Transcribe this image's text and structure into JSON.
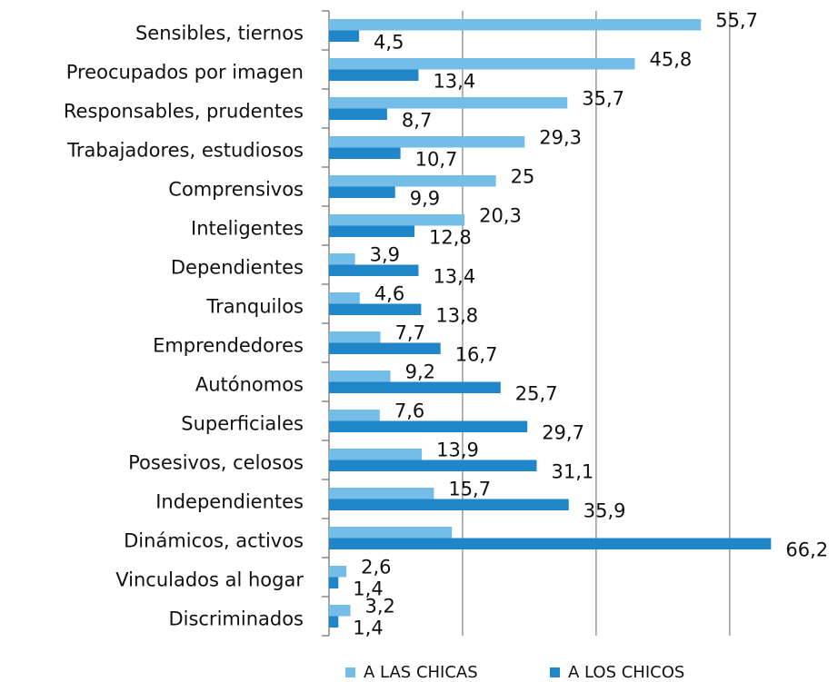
{
  "chart_data": {
    "type": "hbar",
    "categories": [
      "Sensibles, tiernos",
      "Preocupados por imagen",
      "Responsables, prudentes",
      "Trabajadores, estudiosos",
      "Comprensivos",
      "Inteligentes",
      "Dependientes",
      "Tranquilos",
      "Emprendedores",
      "Autónomos",
      "Superficiales",
      "Posesivos, celosos",
      "Independientes",
      "Dinámicos, activos",
      "Vinculados al hogar",
      "Discriminados"
    ],
    "series": [
      {
        "name": "A LAS CHICAS",
        "color": "#74bde9",
        "values": [
          55.7,
          45.8,
          35.7,
          29.3,
          25,
          20.3,
          3.9,
          4.6,
          7.7,
          9.2,
          7.6,
          13.9,
          15.7,
          18.4,
          2.6,
          3.2
        ],
        "value_labels": [
          "55,7",
          "45,8",
          "35,7",
          "29,3",
          "25",
          "20,3",
          "3,9",
          "4,6",
          "7,7",
          "9,2",
          "7,6",
          "13,9",
          "15,7",
          null,
          "2,6",
          "3,2"
        ]
      },
      {
        "name": "A LOS CHICOS",
        "color": "#1f86c9",
        "values": [
          4.5,
          13.4,
          8.7,
          10.7,
          9.9,
          12.8,
          13.4,
          13.8,
          16.7,
          25.7,
          29.7,
          31.1,
          35.9,
          66.2,
          1.4,
          1.4
        ],
        "value_labels": [
          "4,5",
          "13,4",
          "8,7",
          "10,7",
          "9,9",
          "12,8",
          "13,4",
          "13,8",
          "16,7",
          "25,7",
          "29,7",
          "31,1",
          "35,9",
          "66,2",
          "1,4",
          "1,4"
        ]
      }
    ],
    "xlim": [
      0,
      75
    ],
    "xticks": [
      0,
      20,
      40,
      60
    ],
    "grid": true,
    "legend": "bottom"
  }
}
